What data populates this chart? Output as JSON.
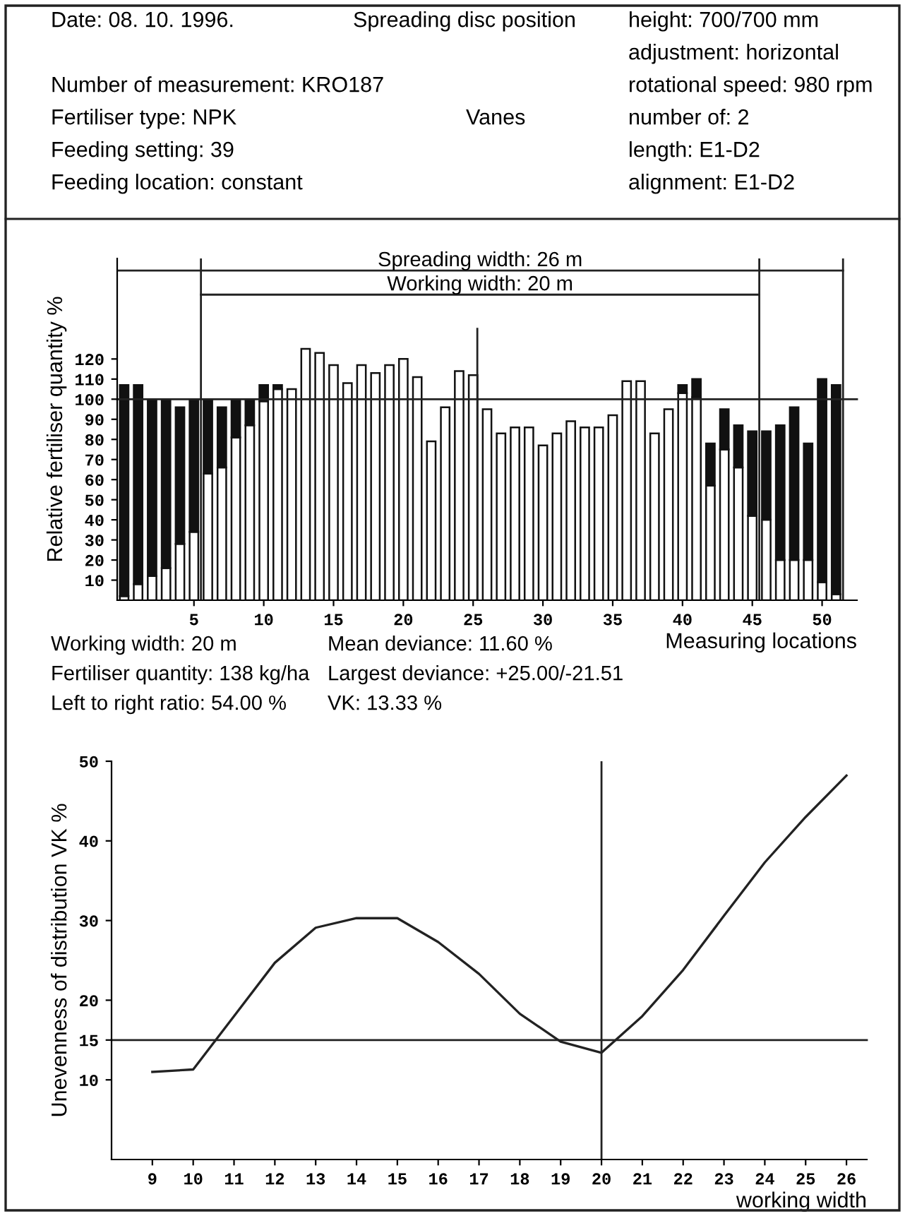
{
  "chart_data": [
    {
      "type": "bar",
      "stacked": true,
      "xlabel": "Measuring locations",
      "ylabel": "Relative fertiliser quantity %",
      "annotations": [
        "Date: 08. 10. 1996.",
        "Spreading disc position",
        "height: 700/700 mm",
        "adjustment: horizontal",
        "Number of measurement: KRO187",
        "rotational speed: 980 rpm",
        "Fertiliser type: NPK",
        "Vanes",
        "number of: 2",
        "Feeding setting: 39",
        "length: E1-D2",
        "Feeding location: constant",
        "alignment: E1-D2",
        "Working width: 20 m",
        "Mean deviance: 11.60 %",
        "Fertiliser quantity: 138 kg/ha",
        "Largest deviance: +25.00/-21.51",
        "Left to right ratio: 54.00 %",
        "VK: 13.33 %",
        "Spreading width: 26 m",
        "Working width: 20 m"
      ],
      "x": [
        0,
        1,
        2,
        3,
        4,
        5,
        6,
        7,
        8,
        9,
        10,
        11,
        12,
        13,
        14,
        15,
        16,
        17,
        18,
        19,
        20,
        21,
        22,
        23,
        24,
        25,
        26,
        27,
        28,
        29,
        30,
        31,
        32,
        33,
        34,
        35,
        36,
        37,
        38,
        39,
        40,
        41,
        42,
        43,
        44,
        45,
        46,
        47,
        48,
        49,
        50,
        51
      ],
      "series": [
        {
          "color": "#ffffff",
          "values": [
            2,
            8,
            12,
            16,
            28,
            34,
            63,
            66,
            81,
            87,
            99,
            105,
            105,
            125,
            123,
            117,
            108,
            117,
            113,
            117,
            120,
            111,
            79,
            96,
            114,
            112,
            95,
            83,
            86,
            86,
            77,
            83,
            89,
            86,
            86,
            92,
            109,
            109,
            83,
            95,
            103,
            101,
            57,
            75,
            66,
            42,
            40,
            20,
            20,
            20,
            9,
            3
          ]
        },
        {
          "color": "#111111",
          "values": [
            105,
            99,
            88,
            84,
            68,
            66,
            37,
            30,
            19,
            13,
            8,
            2,
            null,
            null,
            null,
            null,
            null,
            null,
            null,
            null,
            null,
            null,
            null,
            null,
            null,
            null,
            null,
            null,
            null,
            null,
            null,
            null,
            null,
            null,
            null,
            null,
            null,
            null,
            null,
            null,
            4,
            9,
            21,
            20,
            21,
            42,
            44,
            67,
            76,
            58,
            101,
            104
          ]
        }
      ],
      "xlim": [
        -0.5,
        52.5
      ],
      "ylim": [
        0,
        170
      ],
      "xticks": [
        5,
        10,
        15,
        20,
        25,
        30,
        35,
        40,
        45,
        50
      ],
      "yticks": [
        10,
        20,
        30,
        40,
        50,
        60,
        70,
        80,
        90,
        100,
        110,
        120
      ],
      "ref_lines": [
        {
          "axis": "x",
          "value": 51.5
        },
        {
          "axis": "x",
          "value": 5.5
        },
        {
          "axis": "x",
          "value": 45.5
        },
        {
          "axis": "x",
          "value": 25.3
        },
        {
          "axis": "y",
          "value": 100
        },
        {
          "axis": "y",
          "value": 164
        },
        {
          "axis": "y",
          "value": 152
        }
      ],
      "grid": false,
      "legend": false
    },
    {
      "type": "line",
      "xlabel": "working width",
      "ylabel": "Unevenness of distribution VK %",
      "x": [
        9,
        10,
        11,
        12,
        13,
        14,
        15,
        16,
        17,
        18,
        19,
        20,
        21,
        22,
        23,
        24,
        25,
        26
      ],
      "series": [
        {
          "color": "#222222",
          "values": [
            11.0,
            11.3,
            18.0,
            24.7,
            29.1,
            30.3,
            30.3,
            27.3,
            23.3,
            18.3,
            14.8,
            13.4,
            18.0,
            23.8,
            30.6,
            37.3,
            43.0,
            48.2
          ]
        }
      ],
      "xlim": [
        8,
        26.5
      ],
      "ylim": [
        0,
        50
      ],
      "xticks": [
        9,
        10,
        11,
        12,
        13,
        14,
        15,
        16,
        17,
        18,
        19,
        20,
        21,
        22,
        23,
        24,
        25,
        26
      ],
      "yticks": [
        10,
        15,
        20,
        30,
        40,
        50
      ],
      "ref_lines": [
        {
          "axis": "y",
          "value": 15
        },
        {
          "axis": "x",
          "value": 20
        }
      ],
      "grid": false,
      "legend": false,
      "marker": "none",
      "line_style": "solid"
    }
  ]
}
